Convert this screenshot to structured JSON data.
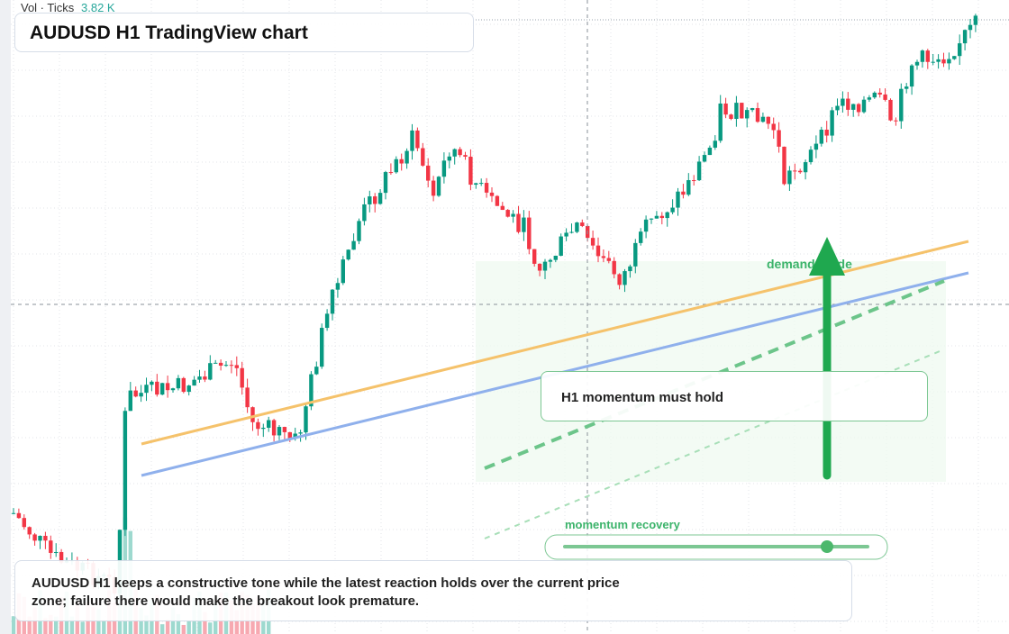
{
  "header": {
    "legend_label": "Vol · Ticks",
    "legend_value": "3.82 K",
    "title": "AUDUSD H1 TradingView chart"
  },
  "annotations": {
    "guide": "demand guide",
    "callout": "H1 momentum must hold",
    "slider_label": "momentum recovery"
  },
  "note": {
    "text": "AUDUSD H1 keeps a constructive tone while the latest reaction holds over the current price zone; failure there would make the breakout look premature."
  }
}
